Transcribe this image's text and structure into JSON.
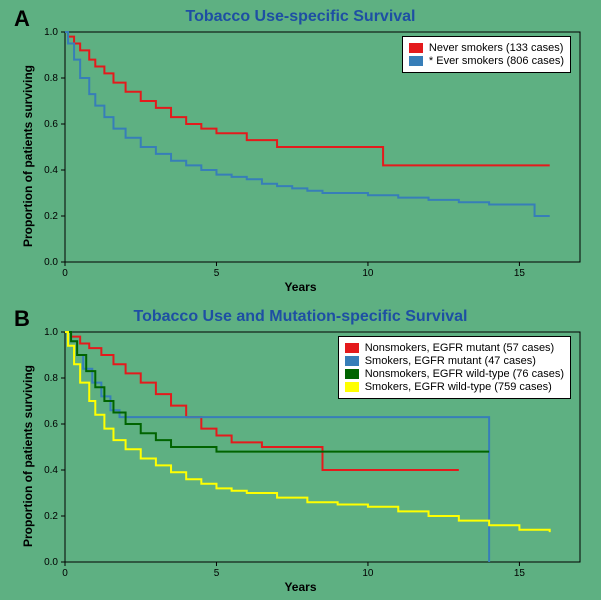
{
  "background_color": "#5eb082",
  "panelA": {
    "label": "A",
    "title": "Tobacco Use-specific Survival",
    "title_color": "#1e4fa3",
    "title_fontsize": 16,
    "ylabel": "Proportion of patients surviving",
    "xlabel": "Years",
    "xlim": [
      0,
      17
    ],
    "ylim": [
      0,
      1.0
    ],
    "xtick_step": 5,
    "ytick_step": 0.2,
    "xticks": [
      0,
      5,
      10,
      15
    ],
    "yticks": [
      0.0,
      0.2,
      0.4,
      0.6,
      0.8,
      1.0
    ],
    "axis_color": "#000000",
    "tick_mark_length": 4,
    "box_border": true,
    "legend": {
      "position": "top-right",
      "bg": "#ffffff",
      "border": "#000000",
      "items": [
        {
          "color": "#e41a1c",
          "label": "Never smokers (133 cases)"
        },
        {
          "color": "#377eb8",
          "label": "* Ever smokers (806 cases)"
        }
      ]
    },
    "series": [
      {
        "name": "Never smokers",
        "color": "#e41a1c",
        "line_width": 2,
        "points": [
          [
            0,
            1.0
          ],
          [
            0.1,
            0.98
          ],
          [
            0.3,
            0.95
          ],
          [
            0.5,
            0.92
          ],
          [
            0.8,
            0.88
          ],
          [
            1.0,
            0.85
          ],
          [
            1.3,
            0.82
          ],
          [
            1.6,
            0.78
          ],
          [
            2.0,
            0.74
          ],
          [
            2.5,
            0.7
          ],
          [
            3.0,
            0.67
          ],
          [
            3.5,
            0.63
          ],
          [
            4.0,
            0.6
          ],
          [
            4.5,
            0.58
          ],
          [
            5.0,
            0.56
          ],
          [
            5.5,
            0.56
          ],
          [
            6.0,
            0.53
          ],
          [
            6.5,
            0.53
          ],
          [
            7.0,
            0.5
          ],
          [
            8.0,
            0.5
          ],
          [
            8.5,
            0.5
          ],
          [
            10.5,
            0.5
          ],
          [
            10.5,
            0.42
          ],
          [
            13.0,
            0.42
          ],
          [
            16.0,
            0.42
          ]
        ]
      },
      {
        "name": "Ever smokers",
        "color": "#377eb8",
        "line_width": 2,
        "points": [
          [
            0,
            1.0
          ],
          [
            0.1,
            0.95
          ],
          [
            0.3,
            0.88
          ],
          [
            0.5,
            0.8
          ],
          [
            0.8,
            0.73
          ],
          [
            1.0,
            0.68
          ],
          [
            1.3,
            0.63
          ],
          [
            1.6,
            0.58
          ],
          [
            2.0,
            0.54
          ],
          [
            2.5,
            0.5
          ],
          [
            3.0,
            0.47
          ],
          [
            3.5,
            0.44
          ],
          [
            4.0,
            0.42
          ],
          [
            4.5,
            0.4
          ],
          [
            5.0,
            0.38
          ],
          [
            5.5,
            0.37
          ],
          [
            6.0,
            0.36
          ],
          [
            6.5,
            0.34
          ],
          [
            7.0,
            0.33
          ],
          [
            7.5,
            0.32
          ],
          [
            8.0,
            0.31
          ],
          [
            8.5,
            0.3
          ],
          [
            9.0,
            0.3
          ],
          [
            10.0,
            0.29
          ],
          [
            11.0,
            0.28
          ],
          [
            12.0,
            0.27
          ],
          [
            13.0,
            0.26
          ],
          [
            14.0,
            0.25
          ],
          [
            15.0,
            0.25
          ],
          [
            15.5,
            0.2
          ],
          [
            16.0,
            0.2
          ]
        ]
      }
    ]
  },
  "panelB": {
    "label": "B",
    "title": "Tobacco Use and Mutation-specific Survival",
    "title_color": "#1e4fa3",
    "title_fontsize": 16,
    "ylabel": "Proportion of patients surviving",
    "xlabel": "Years",
    "xlim": [
      0,
      17
    ],
    "ylim": [
      0,
      1.0
    ],
    "xtick_step": 5,
    "ytick_step": 0.2,
    "xticks": [
      0,
      5,
      10,
      15
    ],
    "yticks": [
      0.0,
      0.2,
      0.4,
      0.6,
      0.8,
      1.0
    ],
    "axis_color": "#000000",
    "tick_mark_length": 4,
    "box_border": true,
    "legend": {
      "position": "top-right",
      "bg": "#ffffff",
      "border": "#000000",
      "items": [
        {
          "color": "#e41a1c",
          "label": "Nonsmokers, EGFR mutant (57 cases)"
        },
        {
          "color": "#377eb8",
          "label": "Smokers, EGFR mutant (47 cases)"
        },
        {
          "color": "#006400",
          "label": "Nonsmokers, EGFR wild-type (76 cases)"
        },
        {
          "color": "#ffff00",
          "label": "Smokers, EGFR wild-type (759 cases)"
        }
      ]
    },
    "series": [
      {
        "name": "Nonsmokers EGFR mutant",
        "color": "#e41a1c",
        "line_width": 2,
        "points": [
          [
            0,
            1.0
          ],
          [
            0.2,
            0.98
          ],
          [
            0.5,
            0.95
          ],
          [
            0.8,
            0.93
          ],
          [
            1.2,
            0.9
          ],
          [
            1.6,
            0.86
          ],
          [
            2.0,
            0.82
          ],
          [
            2.5,
            0.78
          ],
          [
            3.0,
            0.73
          ],
          [
            3.5,
            0.68
          ],
          [
            4.0,
            0.63
          ],
          [
            4.5,
            0.58
          ],
          [
            5.0,
            0.55
          ],
          [
            5.5,
            0.52
          ],
          [
            6.0,
            0.52
          ],
          [
            6.5,
            0.5
          ],
          [
            7.5,
            0.5
          ],
          [
            8.5,
            0.4
          ],
          [
            13.0,
            0.4
          ]
        ]
      },
      {
        "name": "Smokers EGFR mutant",
        "color": "#377eb8",
        "line_width": 2,
        "points": [
          [
            0,
            1.0
          ],
          [
            0.2,
            0.96
          ],
          [
            0.4,
            0.9
          ],
          [
            0.6,
            0.84
          ],
          [
            0.9,
            0.78
          ],
          [
            1.2,
            0.72
          ],
          [
            1.5,
            0.66
          ],
          [
            1.8,
            0.63
          ],
          [
            2.2,
            0.63
          ],
          [
            2.8,
            0.63
          ],
          [
            3.5,
            0.63
          ],
          [
            4.5,
            0.63
          ],
          [
            7.0,
            0.63
          ],
          [
            14.0,
            0.63
          ],
          [
            14.0,
            0.0
          ]
        ]
      },
      {
        "name": "Nonsmokers EGFR wild-type",
        "color": "#006400",
        "line_width": 2,
        "points": [
          [
            0,
            1.0
          ],
          [
            0.2,
            0.96
          ],
          [
            0.4,
            0.9
          ],
          [
            0.7,
            0.83
          ],
          [
            1.0,
            0.76
          ],
          [
            1.3,
            0.7
          ],
          [
            1.6,
            0.65
          ],
          [
            2.0,
            0.6
          ],
          [
            2.5,
            0.56
          ],
          [
            3.0,
            0.53
          ],
          [
            3.5,
            0.5
          ],
          [
            4.0,
            0.5
          ],
          [
            5.0,
            0.48
          ],
          [
            6.0,
            0.48
          ],
          [
            8.0,
            0.48
          ],
          [
            14.0,
            0.48
          ]
        ]
      },
      {
        "name": "Smokers EGFR wild-type",
        "color": "#ffff00",
        "line_width": 2,
        "points": [
          [
            0,
            1.0
          ],
          [
            0.1,
            0.94
          ],
          [
            0.3,
            0.86
          ],
          [
            0.5,
            0.78
          ],
          [
            0.8,
            0.7
          ],
          [
            1.0,
            0.64
          ],
          [
            1.3,
            0.58
          ],
          [
            1.6,
            0.53
          ],
          [
            2.0,
            0.49
          ],
          [
            2.5,
            0.45
          ],
          [
            3.0,
            0.42
          ],
          [
            3.5,
            0.39
          ],
          [
            4.0,
            0.36
          ],
          [
            4.5,
            0.34
          ],
          [
            5.0,
            0.32
          ],
          [
            5.5,
            0.31
          ],
          [
            6.0,
            0.3
          ],
          [
            7.0,
            0.28
          ],
          [
            8.0,
            0.26
          ],
          [
            9.0,
            0.25
          ],
          [
            10.0,
            0.24
          ],
          [
            11.0,
            0.22
          ],
          [
            12.0,
            0.2
          ],
          [
            13.0,
            0.18
          ],
          [
            14.0,
            0.16
          ],
          [
            15.0,
            0.14
          ],
          [
            16.0,
            0.13
          ]
        ]
      }
    ]
  }
}
